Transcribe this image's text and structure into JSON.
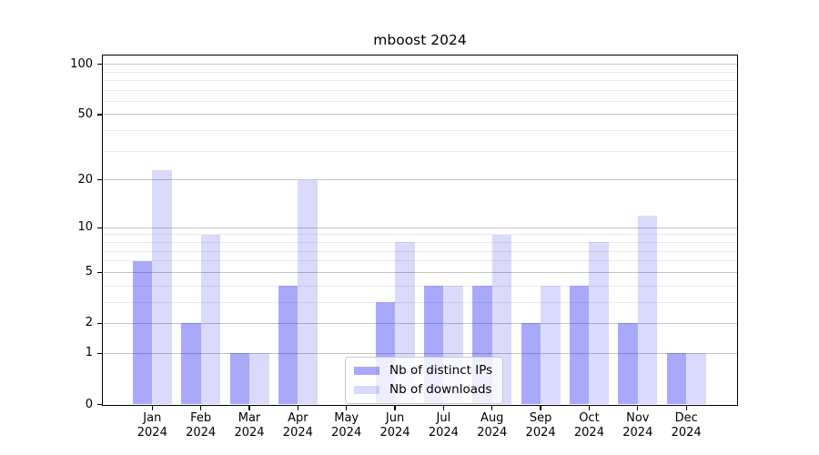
{
  "chart_data": {
    "type": "bar",
    "title": "mboost 2024",
    "year": "2024",
    "categories": [
      "Jan",
      "Feb",
      "Mar",
      "Apr",
      "May",
      "Jun",
      "Jul",
      "Aug",
      "Sep",
      "Oct",
      "Nov",
      "Dec"
    ],
    "series": [
      {
        "name": "Nb of distinct IPs",
        "color": "rgba(10,10,240,0.35)",
        "values": [
          6,
          2,
          1,
          4,
          0,
          3,
          4,
          4,
          2,
          4,
          2,
          1
        ]
      },
      {
        "name": "Nb of downloads",
        "color": "rgba(10,10,240,0.15)",
        "values": [
          23,
          9,
          1,
          20,
          0,
          8,
          4,
          9,
          4,
          8,
          12,
          1
        ]
      }
    ],
    "y_axis": {
      "scale": "log1p",
      "ylim": [
        0,
        112
      ],
      "major_ticks": [
        0,
        1,
        2,
        5,
        10,
        20,
        50,
        100
      ],
      "minor_gridlines": [
        3,
        4,
        6,
        7,
        8,
        9,
        30,
        40,
        60,
        70,
        80,
        90
      ]
    },
    "x_axis": {
      "tick_label_lines": 2
    },
    "legend": {
      "position": "bottom-center"
    },
    "style": {
      "major_grid_color": "#c6c6c6",
      "minor_grid_color": "#ebebeb",
      "spine_color": "#000000",
      "background": "#ffffff"
    }
  }
}
